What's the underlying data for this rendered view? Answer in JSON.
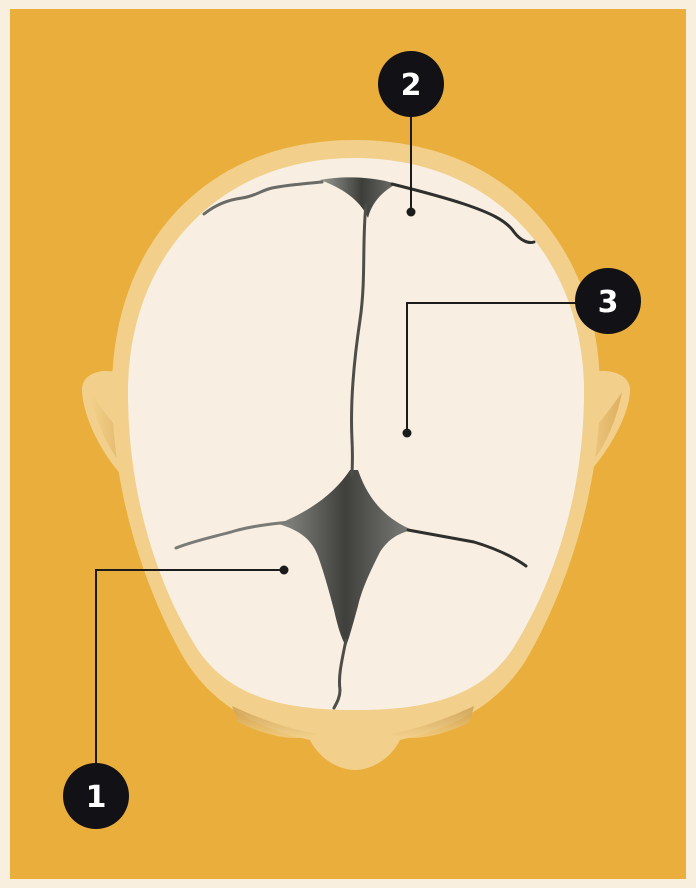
{
  "colors": {
    "background_frame": "#f8efdf",
    "background_panel": "#eaae3c",
    "head_skin": "#f2d08b",
    "ear_shadow": "#d9a95a",
    "skull_bone": "#f8efe2",
    "suture_dark": "#4d4d49",
    "callout_fill": "#111116",
    "callout_line": "#1b1b1b"
  },
  "callouts": [
    {
      "id": "1",
      "label": "1"
    },
    {
      "id": "2",
      "label": "2"
    },
    {
      "id": "3",
      "label": "3"
    }
  ]
}
